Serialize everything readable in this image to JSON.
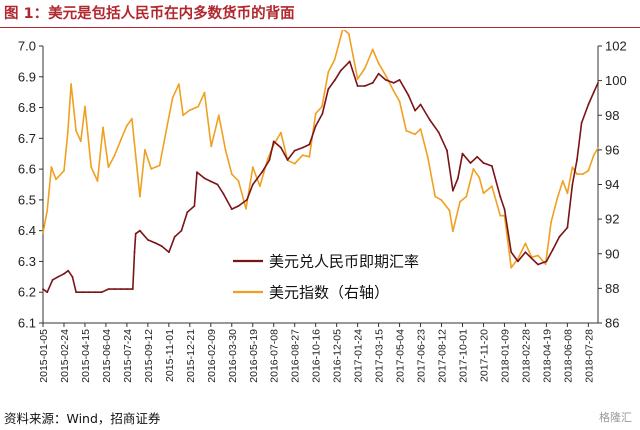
{
  "header": {
    "title": "图 1：美元是包括人民币在内多数货币的背面"
  },
  "footer": {
    "source": "资料来源：Wind，招商证券",
    "watermark": "格隆汇"
  },
  "colors": {
    "title": "#b0282e",
    "usdcny": "#7b1416",
    "dxy": "#f0a020"
  },
  "chart_data": {
    "type": "line",
    "title": "",
    "xlabel": "",
    "ylabel": "",
    "x_ticks": [
      "2015-01-05",
      "2015-02-24",
      "2015-04-15",
      "2015-06-04",
      "2015-07-24",
      "2015-09-12",
      "2015-11-01",
      "2015-12-21",
      "2016-02-09",
      "2016-03-30",
      "2016-05-19",
      "2016-07-08",
      "2016-08-27",
      "2016-10-16",
      "2016-12-05",
      "2017-01-24",
      "2017-03-15",
      "2017-05-04",
      "2017-06-23",
      "2017-08-12",
      "2017-10-01",
      "2017-11-20",
      "2018-01-09",
      "2018-02-28",
      "2018-04-19",
      "2018-06-08",
      "2018-07-28"
    ],
    "x_range": [
      "2015-01-05",
      "2018-08-20"
    ],
    "y_left": {
      "range": [
        6.1,
        7.0
      ],
      "ticks": [
        "6.1",
        "6.2",
        "6.3",
        "6.4",
        "6.5",
        "6.6",
        "6.7",
        "6.8",
        "6.9",
        "7.0"
      ]
    },
    "y_right": {
      "range": [
        86,
        102
      ],
      "ticks": [
        "86",
        "88",
        "90",
        "92",
        "94",
        "96",
        "98",
        "100",
        "102"
      ]
    },
    "legend_position": "center",
    "grid": false,
    "series": [
      {
        "name": "美元兑人民币即期汇率",
        "axis": "left",
        "color": "#7b1416",
        "points": [
          [
            "2015-01-05",
            6.21
          ],
          [
            "2015-01-15",
            6.2
          ],
          [
            "2015-01-28",
            6.24
          ],
          [
            "2015-02-10",
            6.25
          ],
          [
            "2015-02-24",
            6.26
          ],
          [
            "2015-03-06",
            6.27
          ],
          [
            "2015-03-16",
            6.25
          ],
          [
            "2015-03-25",
            6.2
          ],
          [
            "2015-04-10",
            6.2
          ],
          [
            "2015-04-25",
            6.2
          ],
          [
            "2015-05-10",
            6.2
          ],
          [
            "2015-05-25",
            6.2
          ],
          [
            "2015-06-10",
            6.21
          ],
          [
            "2015-06-25",
            6.21
          ],
          [
            "2015-07-10",
            6.21
          ],
          [
            "2015-07-24",
            6.21
          ],
          [
            "2015-08-07",
            6.21
          ],
          [
            "2015-08-11",
            6.33
          ],
          [
            "2015-08-14",
            6.39
          ],
          [
            "2015-08-24",
            6.4
          ],
          [
            "2015-09-12",
            6.37
          ],
          [
            "2015-09-30",
            6.36
          ],
          [
            "2015-10-15",
            6.35
          ],
          [
            "2015-11-01",
            6.33
          ],
          [
            "2015-11-15",
            6.38
          ],
          [
            "2015-12-01",
            6.4
          ],
          [
            "2015-12-15",
            6.46
          ],
          [
            "2016-01-01",
            6.48
          ],
          [
            "2016-01-07",
            6.59
          ],
          [
            "2016-01-25",
            6.57
          ],
          [
            "2016-02-09",
            6.56
          ],
          [
            "2016-02-25",
            6.55
          ],
          [
            "2016-03-10",
            6.52
          ],
          [
            "2016-03-30",
            6.47
          ],
          [
            "2016-04-15",
            6.48
          ],
          [
            "2016-05-05",
            6.5
          ],
          [
            "2016-05-19",
            6.55
          ],
          [
            "2016-06-10",
            6.59
          ],
          [
            "2016-06-28",
            6.63
          ],
          [
            "2016-07-08",
            6.69
          ],
          [
            "2016-07-25",
            6.67
          ],
          [
            "2016-08-10",
            6.63
          ],
          [
            "2016-08-27",
            6.66
          ],
          [
            "2016-09-15",
            6.67
          ],
          [
            "2016-10-01",
            6.68
          ],
          [
            "2016-10-16",
            6.74
          ],
          [
            "2016-11-01",
            6.78
          ],
          [
            "2016-11-15",
            6.86
          ],
          [
            "2016-12-01",
            6.89
          ],
          [
            "2016-12-15",
            6.92
          ],
          [
            "2017-01-05",
            6.95
          ],
          [
            "2017-01-24",
            6.87
          ],
          [
            "2017-02-10",
            6.87
          ],
          [
            "2017-03-01",
            6.88
          ],
          [
            "2017-03-15",
            6.91
          ],
          [
            "2017-04-01",
            6.89
          ],
          [
            "2017-04-20",
            6.88
          ],
          [
            "2017-05-04",
            6.89
          ],
          [
            "2017-05-25",
            6.84
          ],
          [
            "2017-06-10",
            6.79
          ],
          [
            "2017-06-23",
            6.81
          ],
          [
            "2017-07-15",
            6.76
          ],
          [
            "2017-08-05",
            6.72
          ],
          [
            "2017-08-25",
            6.66
          ],
          [
            "2017-09-08",
            6.53
          ],
          [
            "2017-09-20",
            6.57
          ],
          [
            "2017-10-01",
            6.65
          ],
          [
            "2017-10-20",
            6.62
          ],
          [
            "2017-11-05",
            6.64
          ],
          [
            "2017-11-20",
            6.62
          ],
          [
            "2017-12-10",
            6.61
          ],
          [
            "2017-12-30",
            6.51
          ],
          [
            "2018-01-09",
            6.47
          ],
          [
            "2018-01-25",
            6.33
          ],
          [
            "2018-02-10",
            6.3
          ],
          [
            "2018-02-28",
            6.33
          ],
          [
            "2018-03-15",
            6.31
          ],
          [
            "2018-03-30",
            6.29
          ],
          [
            "2018-04-19",
            6.3
          ],
          [
            "2018-05-05",
            6.34
          ],
          [
            "2018-05-20",
            6.38
          ],
          [
            "2018-06-08",
            6.41
          ],
          [
            "2018-06-20",
            6.55
          ],
          [
            "2018-07-01",
            6.63
          ],
          [
            "2018-07-12",
            6.75
          ],
          [
            "2018-07-28",
            6.81
          ],
          [
            "2018-08-10",
            6.85
          ],
          [
            "2018-08-20",
            6.88
          ]
        ]
      },
      {
        "name": "美元指数（右轴）",
        "axis": "right",
        "color": "#f0a020",
        "points": [
          [
            "2015-01-05",
            91.2
          ],
          [
            "2015-01-15",
            92.5
          ],
          [
            "2015-01-25",
            95
          ],
          [
            "2015-02-05",
            94.3
          ],
          [
            "2015-02-24",
            94.8
          ],
          [
            "2015-03-05",
            97
          ],
          [
            "2015-03-13",
            99.8
          ],
          [
            "2015-03-25",
            97.1
          ],
          [
            "2015-04-05",
            96.5
          ],
          [
            "2015-04-15",
            98.5
          ],
          [
            "2015-04-30",
            95
          ],
          [
            "2015-05-15",
            94.2
          ],
          [
            "2015-05-28",
            97.3
          ],
          [
            "2015-06-10",
            95
          ],
          [
            "2015-06-25",
            95.7
          ],
          [
            "2015-07-10",
            96.6
          ],
          [
            "2015-07-24",
            97.4
          ],
          [
            "2015-08-05",
            97.8
          ],
          [
            "2015-08-24",
            93.3
          ],
          [
            "2015-09-05",
            96
          ],
          [
            "2015-09-20",
            94.9
          ],
          [
            "2015-10-10",
            95.1
          ],
          [
            "2015-10-28",
            97.4
          ],
          [
            "2015-11-10",
            99
          ],
          [
            "2015-11-25",
            99.8
          ],
          [
            "2015-12-05",
            98
          ],
          [
            "2015-12-21",
            98.3
          ],
          [
            "2016-01-10",
            98.5
          ],
          [
            "2016-01-25",
            99.3
          ],
          [
            "2016-02-10",
            96.2
          ],
          [
            "2016-02-28",
            98
          ],
          [
            "2016-03-15",
            96
          ],
          [
            "2016-03-30",
            94.6
          ],
          [
            "2016-04-15",
            94.2
          ],
          [
            "2016-05-03",
            92.6
          ],
          [
            "2016-05-19",
            95
          ],
          [
            "2016-06-05",
            93.9
          ],
          [
            "2016-06-24",
            95.5
          ],
          [
            "2016-07-08",
            96.3
          ],
          [
            "2016-07-25",
            97
          ],
          [
            "2016-08-10",
            95.4
          ],
          [
            "2016-08-27",
            95.2
          ],
          [
            "2016-09-15",
            95.7
          ],
          [
            "2016-10-01",
            95.6
          ],
          [
            "2016-10-16",
            98.1
          ],
          [
            "2016-10-31",
            98.5
          ],
          [
            "2016-11-15",
            100.5
          ],
          [
            "2016-11-30",
            101.2
          ],
          [
            "2016-12-20",
            103
          ],
          [
            "2017-01-03",
            102.7
          ],
          [
            "2017-01-24",
            100.1
          ],
          [
            "2017-02-10",
            100.7
          ],
          [
            "2017-03-01",
            101.8
          ],
          [
            "2017-03-15",
            101
          ],
          [
            "2017-04-01",
            100.3
          ],
          [
            "2017-04-20",
            99.4
          ],
          [
            "2017-05-04",
            98.8
          ],
          [
            "2017-05-20",
            97.1
          ],
          [
            "2017-06-10",
            96.9
          ],
          [
            "2017-06-23",
            97.2
          ],
          [
            "2017-07-10",
            95.6
          ],
          [
            "2017-07-28",
            93.3
          ],
          [
            "2017-08-12",
            93.1
          ],
          [
            "2017-08-31",
            92.5
          ],
          [
            "2017-09-08",
            91.3
          ],
          [
            "2017-09-25",
            93
          ],
          [
            "2017-10-10",
            93.3
          ],
          [
            "2017-10-27",
            94.9
          ],
          [
            "2017-11-10",
            94.4
          ],
          [
            "2017-11-20",
            93.5
          ],
          [
            "2017-12-10",
            93.9
          ],
          [
            "2017-12-30",
            92.2
          ],
          [
            "2018-01-09",
            92.2
          ],
          [
            "2018-01-25",
            89.2
          ],
          [
            "2018-02-10",
            89.7
          ],
          [
            "2018-02-28",
            90.6
          ],
          [
            "2018-03-15",
            89.8
          ],
          [
            "2018-03-30",
            89.9
          ],
          [
            "2018-04-17",
            89.4
          ],
          [
            "2018-04-30",
            91.8
          ],
          [
            "2018-05-15",
            93.2
          ],
          [
            "2018-05-28",
            94.2
          ],
          [
            "2018-06-08",
            93.5
          ],
          [
            "2018-06-20",
            95
          ],
          [
            "2018-07-01",
            94.6
          ],
          [
            "2018-07-15",
            94.6
          ],
          [
            "2018-07-28",
            94.8
          ],
          [
            "2018-08-10",
            95.7
          ],
          [
            "2018-08-20",
            96.1
          ]
        ]
      }
    ]
  }
}
